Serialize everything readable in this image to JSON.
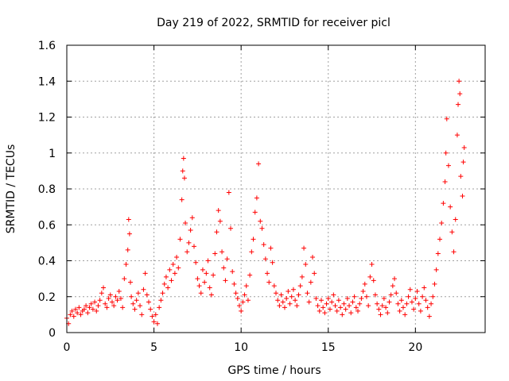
{
  "chart_data": {
    "type": "scatter",
    "title": "Day 219 of 2022, SRMTID for receiver picl",
    "xlabel": "GPS time / hours",
    "ylabel": "SRMTID / TECUs",
    "xlim": [
      0,
      24
    ],
    "ylim": [
      0,
      1.6
    ],
    "xticks": [
      0,
      5,
      10,
      15,
      20
    ],
    "xtick_labels": [
      "0",
      "5",
      "10",
      "15",
      "20"
    ],
    "yticks": [
      0,
      0.2,
      0.4,
      0.6,
      0.8,
      1.0,
      1.2,
      1.4,
      1.6
    ],
    "ytick_labels": [
      "0",
      "0.2",
      "0.4",
      "0.6",
      "0.8",
      "1",
      "1.2",
      "1.4",
      "1.6"
    ],
    "grid": true,
    "marker": "plus",
    "color": "#ff0000",
    "series": [
      {
        "name": "SRMTID",
        "points": [
          [
            0.0,
            0.08
          ],
          [
            0.1,
            0.05
          ],
          [
            0.2,
            0.1
          ],
          [
            0.3,
            0.12
          ],
          [
            0.4,
            0.09
          ],
          [
            0.5,
            0.13
          ],
          [
            0.6,
            0.11
          ],
          [
            0.7,
            0.14
          ],
          [
            0.8,
            0.1
          ],
          [
            0.9,
            0.12
          ],
          [
            1.0,
            0.13
          ],
          [
            1.1,
            0.15
          ],
          [
            1.2,
            0.11
          ],
          [
            1.3,
            0.14
          ],
          [
            1.4,
            0.16
          ],
          [
            1.5,
            0.13
          ],
          [
            1.6,
            0.17
          ],
          [
            1.7,
            0.12
          ],
          [
            1.8,
            0.15
          ],
          [
            1.9,
            0.18
          ],
          [
            2.0,
            0.22
          ],
          [
            2.1,
            0.25
          ],
          [
            2.2,
            0.16
          ],
          [
            2.3,
            0.14
          ],
          [
            2.4,
            0.19
          ],
          [
            2.5,
            0.21
          ],
          [
            2.6,
            0.17
          ],
          [
            2.7,
            0.15
          ],
          [
            2.8,
            0.2
          ],
          [
            2.9,
            0.18
          ],
          [
            3.0,
            0.23
          ],
          [
            3.1,
            0.19
          ],
          [
            3.2,
            0.14
          ],
          [
            3.3,
            0.3
          ],
          [
            3.4,
            0.38
          ],
          [
            3.5,
            0.46
          ],
          [
            3.55,
            0.63
          ],
          [
            3.6,
            0.55
          ],
          [
            3.65,
            0.28
          ],
          [
            3.7,
            0.2
          ],
          [
            3.8,
            0.16
          ],
          [
            3.9,
            0.13
          ],
          [
            4.0,
            0.18
          ],
          [
            4.1,
            0.22
          ],
          [
            4.2,
            0.15
          ],
          [
            4.3,
            0.1
          ],
          [
            4.4,
            0.24
          ],
          [
            4.5,
            0.33
          ],
          [
            4.6,
            0.21
          ],
          [
            4.7,
            0.17
          ],
          [
            4.8,
            0.13
          ],
          [
            4.9,
            0.09
          ],
          [
            5.0,
            0.06
          ],
          [
            5.1,
            0.1
          ],
          [
            5.2,
            0.05
          ],
          [
            5.3,
            0.14
          ],
          [
            5.4,
            0.18
          ],
          [
            5.5,
            0.22
          ],
          [
            5.6,
            0.27
          ],
          [
            5.7,
            0.31
          ],
          [
            5.8,
            0.25
          ],
          [
            5.9,
            0.35
          ],
          [
            6.0,
            0.29
          ],
          [
            6.1,
            0.38
          ],
          [
            6.2,
            0.33
          ],
          [
            6.3,
            0.42
          ],
          [
            6.4,
            0.36
          ],
          [
            6.5,
            0.52
          ],
          [
            6.6,
            0.74
          ],
          [
            6.65,
            0.9
          ],
          [
            6.7,
            0.97
          ],
          [
            6.75,
            0.86
          ],
          [
            6.8,
            0.61
          ],
          [
            6.9,
            0.45
          ],
          [
            7.0,
            0.5
          ],
          [
            7.1,
            0.57
          ],
          [
            7.2,
            0.64
          ],
          [
            7.3,
            0.48
          ],
          [
            7.4,
            0.39
          ],
          [
            7.5,
            0.3
          ],
          [
            7.6,
            0.26
          ],
          [
            7.7,
            0.22
          ],
          [
            7.8,
            0.35
          ],
          [
            7.9,
            0.28
          ],
          [
            8.0,
            0.33
          ],
          [
            8.1,
            0.4
          ],
          [
            8.2,
            0.25
          ],
          [
            8.3,
            0.21
          ],
          [
            8.4,
            0.32
          ],
          [
            8.5,
            0.44
          ],
          [
            8.6,
            0.56
          ],
          [
            8.7,
            0.68
          ],
          [
            8.8,
            0.62
          ],
          [
            8.9,
            0.45
          ],
          [
            9.0,
            0.36
          ],
          [
            9.1,
            0.29
          ],
          [
            9.2,
            0.41
          ],
          [
            9.3,
            0.78
          ],
          [
            9.4,
            0.58
          ],
          [
            9.5,
            0.34
          ],
          [
            9.6,
            0.27
          ],
          [
            9.7,
            0.22
          ],
          [
            9.8,
            0.19
          ],
          [
            9.9,
            0.15
          ],
          [
            10.0,
            0.12
          ],
          [
            10.1,
            0.17
          ],
          [
            10.2,
            0.21
          ],
          [
            10.3,
            0.26
          ],
          [
            10.4,
            0.18
          ],
          [
            10.5,
            0.32
          ],
          [
            10.6,
            0.45
          ],
          [
            10.7,
            0.52
          ],
          [
            10.8,
            0.67
          ],
          [
            10.9,
            0.75
          ],
          [
            11.0,
            0.94
          ],
          [
            11.1,
            0.62
          ],
          [
            11.2,
            0.58
          ],
          [
            11.3,
            0.49
          ],
          [
            11.4,
            0.41
          ],
          [
            11.5,
            0.33
          ],
          [
            11.6,
            0.28
          ],
          [
            11.7,
            0.47
          ],
          [
            11.8,
            0.39
          ],
          [
            11.9,
            0.26
          ],
          [
            12.0,
            0.22
          ],
          [
            12.1,
            0.18
          ],
          [
            12.2,
            0.15
          ],
          [
            12.3,
            0.21
          ],
          [
            12.4,
            0.17
          ],
          [
            12.5,
            0.14
          ],
          [
            12.6,
            0.19
          ],
          [
            12.7,
            0.23
          ],
          [
            12.8,
            0.16
          ],
          [
            12.9,
            0.2
          ],
          [
            13.0,
            0.24
          ],
          [
            13.1,
            0.18
          ],
          [
            13.2,
            0.15
          ],
          [
            13.3,
            0.21
          ],
          [
            13.4,
            0.26
          ],
          [
            13.5,
            0.31
          ],
          [
            13.6,
            0.47
          ],
          [
            13.7,
            0.38
          ],
          [
            13.8,
            0.22
          ],
          [
            13.9,
            0.17
          ],
          [
            14.0,
            0.28
          ],
          [
            14.1,
            0.42
          ],
          [
            14.2,
            0.33
          ],
          [
            14.3,
            0.19
          ],
          [
            14.4,
            0.15
          ],
          [
            14.5,
            0.12
          ],
          [
            14.6,
            0.18
          ],
          [
            14.7,
            0.14
          ],
          [
            14.8,
            0.11
          ],
          [
            14.9,
            0.16
          ],
          [
            15.0,
            0.19
          ],
          [
            15.1,
            0.13
          ],
          [
            15.2,
            0.17
          ],
          [
            15.3,
            0.21
          ],
          [
            15.4,
            0.15
          ],
          [
            15.5,
            0.12
          ],
          [
            15.6,
            0.18
          ],
          [
            15.7,
            0.14
          ],
          [
            15.8,
            0.1
          ],
          [
            15.9,
            0.16
          ],
          [
            16.0,
            0.13
          ],
          [
            16.1,
            0.19
          ],
          [
            16.2,
            0.15
          ],
          [
            16.3,
            0.11
          ],
          [
            16.4,
            0.17
          ],
          [
            16.5,
            0.2
          ],
          [
            16.6,
            0.14
          ],
          [
            16.7,
            0.12
          ],
          [
            16.8,
            0.16
          ],
          [
            16.9,
            0.19
          ],
          [
            17.0,
            0.23
          ],
          [
            17.1,
            0.27
          ],
          [
            17.2,
            0.2
          ],
          [
            17.3,
            0.15
          ],
          [
            17.4,
            0.31
          ],
          [
            17.5,
            0.38
          ],
          [
            17.6,
            0.29
          ],
          [
            17.7,
            0.21
          ],
          [
            17.8,
            0.16
          ],
          [
            17.9,
            0.13
          ],
          [
            18.0,
            0.1
          ],
          [
            18.1,
            0.15
          ],
          [
            18.2,
            0.19
          ],
          [
            18.3,
            0.14
          ],
          [
            18.4,
            0.11
          ],
          [
            18.5,
            0.17
          ],
          [
            18.6,
            0.21
          ],
          [
            18.7,
            0.26
          ],
          [
            18.8,
            0.3
          ],
          [
            18.9,
            0.22
          ],
          [
            19.0,
            0.16
          ],
          [
            19.1,
            0.12
          ],
          [
            19.2,
            0.18
          ],
          [
            19.3,
            0.14
          ],
          [
            19.4,
            0.1
          ],
          [
            19.5,
            0.16
          ],
          [
            19.6,
            0.2
          ],
          [
            19.7,
            0.24
          ],
          [
            19.8,
            0.17
          ],
          [
            19.9,
            0.13
          ],
          [
            20.0,
            0.19
          ],
          [
            20.1,
            0.23
          ],
          [
            20.2,
            0.16
          ],
          [
            20.3,
            0.12
          ],
          [
            20.4,
            0.2
          ],
          [
            20.5,
            0.25
          ],
          [
            20.6,
            0.18
          ],
          [
            20.7,
            0.14
          ],
          [
            20.8,
            0.09
          ],
          [
            20.9,
            0.16
          ],
          [
            21.0,
            0.2
          ],
          [
            21.1,
            0.27
          ],
          [
            21.2,
            0.35
          ],
          [
            21.3,
            0.44
          ],
          [
            21.4,
            0.52
          ],
          [
            21.5,
            0.61
          ],
          [
            21.6,
            0.72
          ],
          [
            21.7,
            0.84
          ],
          [
            21.75,
            1.0
          ],
          [
            21.8,
            1.19
          ],
          [
            21.9,
            0.93
          ],
          [
            22.0,
            0.7
          ],
          [
            22.1,
            0.56
          ],
          [
            22.2,
            0.45
          ],
          [
            22.3,
            0.63
          ],
          [
            22.4,
            1.1
          ],
          [
            22.45,
            1.27
          ],
          [
            22.5,
            1.4
          ],
          [
            22.55,
            1.33
          ],
          [
            22.6,
            0.87
          ],
          [
            22.7,
            0.76
          ],
          [
            22.75,
            0.95
          ],
          [
            22.8,
            1.03
          ]
        ]
      }
    ]
  }
}
